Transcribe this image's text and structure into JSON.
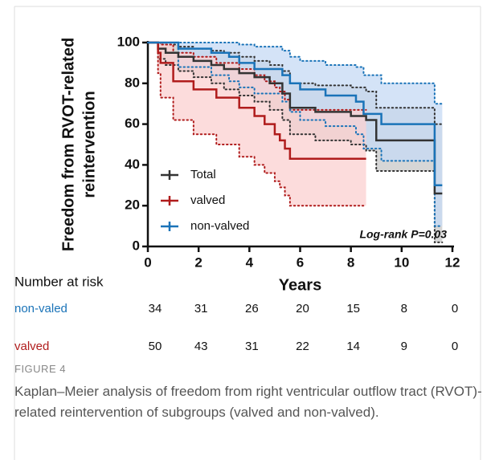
{
  "chart_data": {
    "type": "km",
    "y_label_lines": [
      "Freedom from RVOT-related",
      "reintervention"
    ],
    "x_label": "Years",
    "annotation": "Log-rank P=0.03",
    "xlim": [
      0,
      12
    ],
    "xticks": [
      0,
      2,
      4,
      6,
      8,
      10,
      12
    ],
    "ylim": [
      0,
      100
    ],
    "yticks": [
      0,
      20,
      40,
      60,
      80,
      100
    ],
    "legend": "lower left",
    "series": [
      {
        "name": "Total",
        "color": "#333333",
        "band_color": "#c8c8c8",
        "x": [
          0,
          0.4,
          0.7,
          1.2,
          1.8,
          2.5,
          3.0,
          3.6,
          4.2,
          4.8,
          5.3,
          5.6,
          6.6,
          8.0,
          8.6,
          9.0,
          11.3,
          11.6
        ],
        "values": [
          100,
          97,
          95,
          93,
          91,
          89,
          87,
          85,
          83,
          80,
          75,
          68,
          66,
          64,
          62,
          52,
          26,
          26
        ],
        "lower": [
          100,
          92,
          89,
          86,
          83,
          80,
          77,
          74,
          71,
          67,
          62,
          55,
          52,
          50,
          47,
          37,
          2,
          2
        ],
        "upper": [
          100,
          100,
          99,
          98,
          97,
          96,
          95,
          93,
          91,
          89,
          86,
          80,
          79,
          78,
          76,
          68,
          60,
          60
        ]
      },
      {
        "name": "valved",
        "color": "#b01c1c",
        "band_color": "#fbd0d0",
        "x": [
          0,
          0.4,
          0.5,
          1.0,
          1.8,
          2.7,
          3.6,
          4.2,
          4.6,
          5.0,
          5.2,
          5.4,
          5.6,
          8.6
        ],
        "values": [
          100,
          95,
          90,
          81,
          77,
          73,
          68,
          64,
          60,
          55,
          52,
          48,
          43,
          43
        ],
        "lower": [
          100,
          85,
          73,
          62,
          55,
          50,
          44,
          40,
          36,
          32,
          29,
          25,
          20,
          20
        ],
        "upper": [
          100,
          100,
          99,
          95,
          93,
          90,
          87,
          84,
          81,
          78,
          76,
          72,
          67,
          67
        ]
      },
      {
        "name": "non-valved",
        "color": "#1a73b8",
        "band_color": "#c6daf4",
        "x": [
          0,
          1.2,
          2.5,
          3.2,
          3.6,
          4.2,
          5.3,
          5.6,
          6.0,
          7.0,
          8.2,
          8.5,
          9.2,
          11.3,
          11.6
        ],
        "values": [
          100,
          97,
          95,
          93,
          90,
          87,
          84,
          80,
          77,
          74,
          71,
          65,
          60,
          30,
          30
        ],
        "lower": [
          100,
          88,
          84,
          81,
          78,
          75,
          71,
          66,
          62,
          59,
          55,
          48,
          42,
          10,
          10
        ],
        "upper": [
          100,
          100,
          100,
          100,
          99,
          98,
          96,
          93,
          91,
          89,
          88,
          84,
          80,
          70,
          70
        ]
      }
    ],
    "risk_table": {
      "title": "Number at risk",
      "rows": [
        {
          "name": "non-valed",
          "color": "#1a73b8",
          "values": [
            34,
            31,
            26,
            20,
            15,
            8,
            0
          ]
        },
        {
          "name": "valved",
          "color": "#b01c1c",
          "values": [
            50,
            43,
            31,
            22,
            14,
            9,
            0
          ]
        }
      ]
    }
  },
  "caption": {
    "label": "FIGURE 4",
    "text": "Kaplan–Meier analysis of freedom from right ventricular outflow tract (RVOT)-related reintervention of subgroups (valved and non-valved)."
  }
}
